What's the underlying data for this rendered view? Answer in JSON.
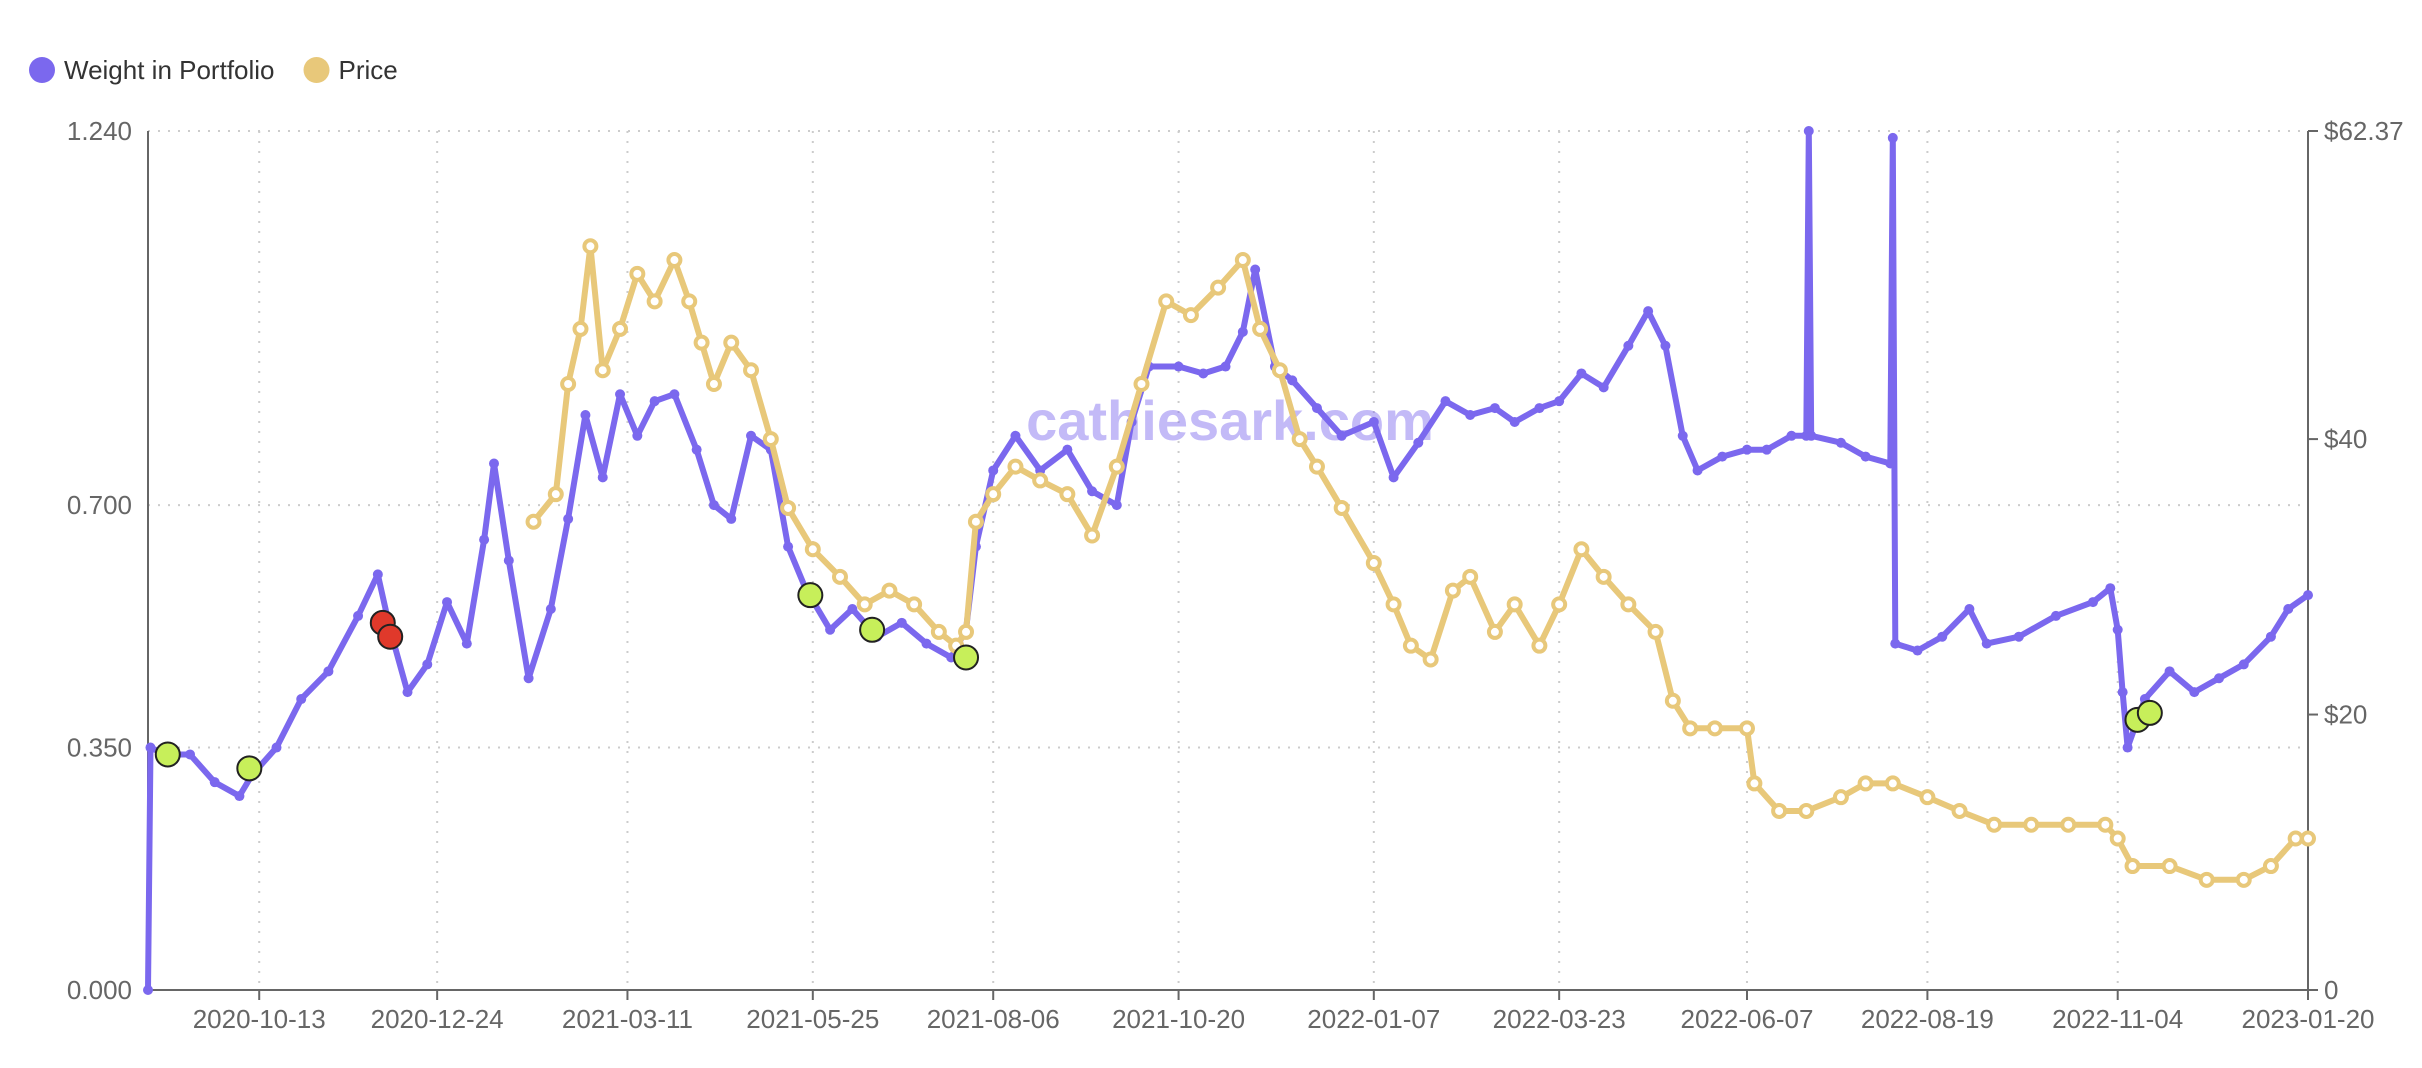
{
  "colors": {
    "weight": "#7b68ee",
    "price": "#e8c87a",
    "buy_marker": "#c7ef5a",
    "sell_marker": "#e0392b",
    "grid": "#cccccc",
    "axis": "#666666"
  },
  "watermark": "cathiesark.com",
  "chart_data": {
    "type": "line",
    "legend": [
      {
        "name": "Weight in Portfolio",
        "color": "#7b68ee"
      },
      {
        "name": "Price",
        "color": "#e8c87a"
      }
    ],
    "legend_position": "top-left",
    "grid": true,
    "x_ticks": [
      "2020-10-13",
      "2020-12-24",
      "2021-03-11",
      "2021-05-25",
      "2021-08-06",
      "2021-10-20",
      "2022-01-07",
      "2022-03-23",
      "2022-06-07",
      "2022-08-19",
      "2022-11-04",
      "2023-01-20"
    ],
    "x_range": [
      "2020-08-29",
      "2023-01-20"
    ],
    "y_left": {
      "ticks": [
        "0.000",
        "0.350",
        "0.700",
        "1.240"
      ],
      "tick_values": [
        0,
        0.35,
        0.7,
        1.24
      ],
      "range": [
        0,
        1.24
      ]
    },
    "y_right": {
      "ticks": [
        "0",
        "$20",
        "$40",
        "$62.37"
      ],
      "tick_values": [
        0,
        20,
        40,
        62.37
      ],
      "range": [
        0,
        62.37
      ]
    },
    "series": [
      {
        "name": "Weight in Portfolio",
        "axis": "left",
        "points": [
          [
            "2020-08-29",
            0.0
          ],
          [
            "2020-08-30",
            0.35
          ],
          [
            "2020-09-05",
            0.34
          ],
          [
            "2020-09-15",
            0.34
          ],
          [
            "2020-09-25",
            0.3
          ],
          [
            "2020-10-05",
            0.28
          ],
          [
            "2020-10-10",
            0.31
          ],
          [
            "2020-10-20",
            0.35
          ],
          [
            "2020-10-30",
            0.42
          ],
          [
            "2020-11-10",
            0.46
          ],
          [
            "2020-11-22",
            0.54
          ],
          [
            "2020-11-30",
            0.6
          ],
          [
            "2020-12-05",
            0.52
          ],
          [
            "2020-12-12",
            0.43
          ],
          [
            "2020-12-20",
            0.47
          ],
          [
            "2020-12-28",
            0.56
          ],
          [
            "2021-01-05",
            0.5
          ],
          [
            "2021-01-12",
            0.65
          ],
          [
            "2021-01-16",
            0.76
          ],
          [
            "2021-01-22",
            0.62
          ],
          [
            "2021-01-30",
            0.45
          ],
          [
            "2021-02-08",
            0.55
          ],
          [
            "2021-02-15",
            0.68
          ],
          [
            "2021-02-22",
            0.83
          ],
          [
            "2021-03-01",
            0.74
          ],
          [
            "2021-03-08",
            0.86
          ],
          [
            "2021-03-15",
            0.8
          ],
          [
            "2021-03-22",
            0.85
          ],
          [
            "2021-03-30",
            0.86
          ],
          [
            "2021-04-08",
            0.78
          ],
          [
            "2021-04-15",
            0.7
          ],
          [
            "2021-04-22",
            0.68
          ],
          [
            "2021-04-30",
            0.8
          ],
          [
            "2021-05-08",
            0.78
          ],
          [
            "2021-05-15",
            0.64
          ],
          [
            "2021-05-22",
            0.58
          ],
          [
            "2021-06-01",
            0.52
          ],
          [
            "2021-06-10",
            0.55
          ],
          [
            "2021-06-20",
            0.51
          ],
          [
            "2021-06-30",
            0.53
          ],
          [
            "2021-07-10",
            0.5
          ],
          [
            "2021-07-20",
            0.48
          ],
          [
            "2021-07-26",
            0.52
          ],
          [
            "2021-07-30",
            0.64
          ],
          [
            "2021-08-06",
            0.75
          ],
          [
            "2021-08-15",
            0.8
          ],
          [
            "2021-08-25",
            0.75
          ],
          [
            "2021-09-05",
            0.78
          ],
          [
            "2021-09-15",
            0.72
          ],
          [
            "2021-09-25",
            0.7
          ],
          [
            "2021-10-01",
            0.82
          ],
          [
            "2021-10-08",
            0.9
          ],
          [
            "2021-10-20",
            0.9
          ],
          [
            "2021-10-30",
            0.89
          ],
          [
            "2021-11-08",
            0.9
          ],
          [
            "2021-11-15",
            0.95
          ],
          [
            "2021-11-20",
            1.04
          ],
          [
            "2021-11-28",
            0.9
          ],
          [
            "2021-12-05",
            0.88
          ],
          [
            "2021-12-15",
            0.84
          ],
          [
            "2021-12-25",
            0.8
          ],
          [
            "2022-01-07",
            0.82
          ],
          [
            "2022-01-15",
            0.74
          ],
          [
            "2022-01-25",
            0.79
          ],
          [
            "2022-02-05",
            0.85
          ],
          [
            "2022-02-15",
            0.83
          ],
          [
            "2022-02-25",
            0.84
          ],
          [
            "2022-03-05",
            0.82
          ],
          [
            "2022-03-15",
            0.84
          ],
          [
            "2022-03-23",
            0.85
          ],
          [
            "2022-04-01",
            0.89
          ],
          [
            "2022-04-10",
            0.87
          ],
          [
            "2022-04-20",
            0.93
          ],
          [
            "2022-04-28",
            0.98
          ],
          [
            "2022-05-05",
            0.93
          ],
          [
            "2022-05-12",
            0.8
          ],
          [
            "2022-05-18",
            0.75
          ],
          [
            "2022-05-28",
            0.77
          ],
          [
            "2022-06-07",
            0.78
          ],
          [
            "2022-06-15",
            0.78
          ],
          [
            "2022-06-25",
            0.8
          ],
          [
            "2022-07-01",
            0.8
          ],
          [
            "2022-07-02",
            1.24
          ],
          [
            "2022-07-03",
            0.8
          ],
          [
            "2022-07-15",
            0.79
          ],
          [
            "2022-07-25",
            0.77
          ],
          [
            "2022-08-04",
            0.76
          ],
          [
            "2022-08-05",
            1.23
          ],
          [
            "2022-08-06",
            0.5
          ],
          [
            "2022-08-15",
            0.49
          ],
          [
            "2022-08-25",
            0.51
          ],
          [
            "2022-09-05",
            0.55
          ],
          [
            "2022-09-12",
            0.5
          ],
          [
            "2022-09-25",
            0.51
          ],
          [
            "2022-10-10",
            0.54
          ],
          [
            "2022-10-25",
            0.56
          ],
          [
            "2022-11-01",
            0.58
          ],
          [
            "2022-11-04",
            0.52
          ],
          [
            "2022-11-06",
            0.43
          ],
          [
            "2022-11-08",
            0.35
          ],
          [
            "2022-11-15",
            0.42
          ],
          [
            "2022-11-25",
            0.46
          ],
          [
            "2022-12-05",
            0.43
          ],
          [
            "2022-12-15",
            0.45
          ],
          [
            "2022-12-25",
            0.47
          ],
          [
            "2023-01-05",
            0.51
          ],
          [
            "2023-01-12",
            0.55
          ],
          [
            "2023-01-20",
            0.57
          ]
        ]
      },
      {
        "name": "Price",
        "axis": "right",
        "points": [
          [
            "2021-02-01",
            34
          ],
          [
            "2021-02-10",
            36
          ],
          [
            "2021-02-15",
            44
          ],
          [
            "2021-02-20",
            48
          ],
          [
            "2021-02-24",
            54
          ],
          [
            "2021-03-01",
            45
          ],
          [
            "2021-03-08",
            48
          ],
          [
            "2021-03-15",
            52
          ],
          [
            "2021-03-22",
            50
          ],
          [
            "2021-03-30",
            53
          ],
          [
            "2021-04-05",
            50
          ],
          [
            "2021-04-10",
            47
          ],
          [
            "2021-04-15",
            44
          ],
          [
            "2021-04-22",
            47
          ],
          [
            "2021-04-30",
            45
          ],
          [
            "2021-05-08",
            40
          ],
          [
            "2021-05-15",
            35
          ],
          [
            "2021-05-25",
            32
          ],
          [
            "2021-06-05",
            30
          ],
          [
            "2021-06-15",
            28
          ],
          [
            "2021-06-25",
            29
          ],
          [
            "2021-07-05",
            28
          ],
          [
            "2021-07-15",
            26
          ],
          [
            "2021-07-22",
            25
          ],
          [
            "2021-07-26",
            26
          ],
          [
            "2021-07-30",
            34
          ],
          [
            "2021-08-06",
            36
          ],
          [
            "2021-08-15",
            38
          ],
          [
            "2021-08-25",
            37
          ],
          [
            "2021-09-05",
            36
          ],
          [
            "2021-09-15",
            33
          ],
          [
            "2021-09-25",
            38
          ],
          [
            "2021-10-05",
            44
          ],
          [
            "2021-10-15",
            50
          ],
          [
            "2021-10-25",
            49
          ],
          [
            "2021-11-05",
            51
          ],
          [
            "2021-11-15",
            53
          ],
          [
            "2021-11-22",
            48
          ],
          [
            "2021-11-30",
            45
          ],
          [
            "2021-12-08",
            40
          ],
          [
            "2021-12-15",
            38
          ],
          [
            "2021-12-25",
            35
          ],
          [
            "2022-01-07",
            31
          ],
          [
            "2022-01-15",
            28
          ],
          [
            "2022-01-22",
            25
          ],
          [
            "2022-01-30",
            24
          ],
          [
            "2022-02-08",
            29
          ],
          [
            "2022-02-15",
            30
          ],
          [
            "2022-02-25",
            26
          ],
          [
            "2022-03-05",
            28
          ],
          [
            "2022-03-15",
            25
          ],
          [
            "2022-03-23",
            28
          ],
          [
            "2022-04-01",
            32
          ],
          [
            "2022-04-10",
            30
          ],
          [
            "2022-04-20",
            28
          ],
          [
            "2022-05-01",
            26
          ],
          [
            "2022-05-08",
            21
          ],
          [
            "2022-05-15",
            19
          ],
          [
            "2022-05-25",
            19
          ],
          [
            "2022-06-07",
            19
          ],
          [
            "2022-06-10",
            15
          ],
          [
            "2022-06-20",
            13
          ],
          [
            "2022-07-01",
            13
          ],
          [
            "2022-07-15",
            14
          ],
          [
            "2022-07-25",
            15
          ],
          [
            "2022-08-05",
            15
          ],
          [
            "2022-08-19",
            14
          ],
          [
            "2022-09-01",
            13
          ],
          [
            "2022-09-15",
            12
          ],
          [
            "2022-09-30",
            12
          ],
          [
            "2022-10-15",
            12
          ],
          [
            "2022-10-30",
            12
          ],
          [
            "2022-11-04",
            11
          ],
          [
            "2022-11-10",
            9
          ],
          [
            "2022-11-25",
            9
          ],
          [
            "2022-12-10",
            8
          ],
          [
            "2022-12-25",
            8
          ],
          [
            "2023-01-05",
            9
          ],
          [
            "2023-01-15",
            11
          ],
          [
            "2023-01-20",
            11
          ]
        ]
      }
    ],
    "markers": [
      {
        "date": "2020-09-06",
        "value": 0.34,
        "kind": "buy"
      },
      {
        "date": "2020-10-09",
        "value": 0.32,
        "kind": "buy"
      },
      {
        "date": "2020-12-02",
        "value": 0.53,
        "kind": "sell"
      },
      {
        "date": "2020-12-05",
        "value": 0.51,
        "kind": "sell"
      },
      {
        "date": "2021-05-24",
        "value": 0.57,
        "kind": "buy"
      },
      {
        "date": "2021-06-18",
        "value": 0.52,
        "kind": "buy"
      },
      {
        "date": "2021-07-26",
        "value": 0.48,
        "kind": "buy"
      },
      {
        "date": "2022-11-12",
        "value": 0.39,
        "kind": "buy"
      },
      {
        "date": "2022-11-17",
        "value": 0.4,
        "kind": "buy"
      }
    ]
  }
}
